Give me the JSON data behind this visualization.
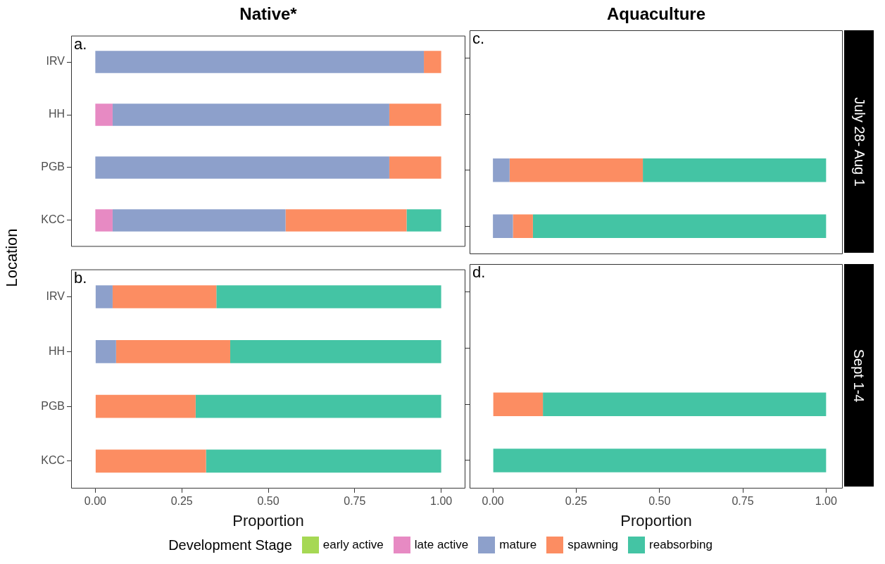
{
  "chart_data": [
    {
      "type": "bar",
      "orientation": "horizontal",
      "stacked": true,
      "title": "Native*",
      "ylabel": "Location",
      "annotations": [
        "a."
      ],
      "categories": [
        "IRV",
        "HH",
        "PGB",
        "KCC"
      ],
      "xlim": [
        -0.07,
        1.07
      ],
      "tick_labels": "y",
      "series": [
        {
          "color": "#e78ac3",
          "values": [
            null,
            0.05,
            null,
            0.05
          ]
        },
        {
          "color": "#8da0cb",
          "values": [
            0.95,
            0.8,
            0.85,
            0.5
          ]
        },
        {
          "color": "#fc8d62",
          "values": [
            0.05,
            0.15,
            0.15,
            0.35
          ]
        },
        {
          "color": "#44c4a4",
          "values": [
            null,
            null,
            null,
            0.1
          ]
        }
      ]
    },
    {
      "type": "bar",
      "orientation": "horizontal",
      "stacked": true,
      "xlabel": "Proportion",
      "annotations": [
        "b."
      ],
      "categories": [
        "IRV",
        "HH",
        "PGB",
        "KCC"
      ],
      "xlim": [
        -0.07,
        1.07
      ],
      "xticks": [
        {
          "value": 0,
          "label": "0.00"
        },
        {
          "value": 0.25,
          "label": "0.25"
        },
        {
          "value": 0.5,
          "label": "0.50"
        },
        {
          "value": 0.75,
          "label": "0.75"
        },
        {
          "value": 1,
          "label": "1.00"
        }
      ],
      "series": [
        {
          "color": "#8da0cb",
          "values": [
            0.05,
            0.06,
            null,
            null
          ]
        },
        {
          "color": "#fc8d62",
          "values": [
            0.3,
            0.33,
            0.29,
            0.32
          ]
        },
        {
          "color": "#44c4a4",
          "values": [
            0.65,
            0.61,
            0.71,
            0.68
          ]
        }
      ]
    },
    {
      "type": "bar",
      "orientation": "horizontal",
      "stacked": true,
      "title": "Aquaculture",
      "annotations": [
        "c.",
        "July 28- Aug 1"
      ],
      "categories": [
        null,
        null,
        null,
        null
      ],
      "xlim": [
        -0.07,
        1.05
      ],
      "tick_labels": false,
      "series": [
        {
          "color": "#8da0cb",
          "values": [
            null,
            null,
            0.05,
            0.06
          ]
        },
        {
          "color": "#fc8d62",
          "values": [
            null,
            null,
            0.4,
            0.06
          ]
        },
        {
          "color": "#44c4a4",
          "values": [
            null,
            null,
            0.55,
            0.88
          ]
        }
      ]
    },
    {
      "type": "bar",
      "orientation": "horizontal",
      "stacked": true,
      "xlabel": "Proportion",
      "annotations": [
        "d.",
        "Sept 1-4"
      ],
      "legend": "bottom",
      "legend_title": "Development Stage",
      "categories": [
        null,
        null,
        null,
        null
      ],
      "xlim": [
        -0.07,
        1.05
      ],
      "xticks": [
        {
          "value": 0,
          "label": "0.00"
        },
        {
          "value": 0.25,
          "label": "0.25"
        },
        {
          "value": 0.5,
          "label": "0.50"
        },
        {
          "value": 0.75,
          "label": "0.75"
        },
        {
          "value": 1,
          "label": "1.00"
        }
      ],
      "tick_labels": "x",
      "series": [
        {
          "name": "early active",
          "color": "#a6d854",
          "values": [
            null,
            null,
            null,
            null
          ]
        },
        {
          "name": "late active",
          "color": "#e78ac3",
          "values": [
            null,
            null,
            null,
            null
          ]
        },
        {
          "name": "mature",
          "color": "#8da0cb",
          "values": [
            null,
            null,
            null,
            null
          ]
        },
        {
          "name": "spawning",
          "color": "#fc8d62",
          "values": [
            null,
            null,
            0.15,
            null
          ]
        },
        {
          "name": "reabsorbing",
          "color": "#44c4a4",
          "values": [
            null,
            null,
            0.85,
            1
          ]
        }
      ]
    }
  ]
}
